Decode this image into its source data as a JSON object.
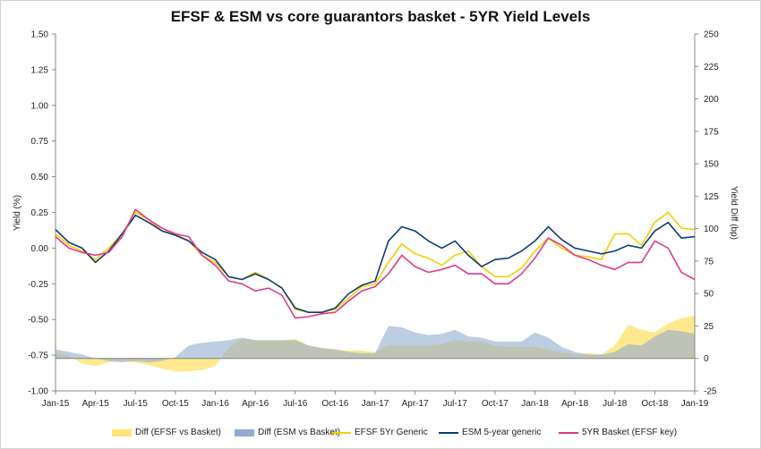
{
  "chart_data": {
    "type": "line",
    "title": "EFSF & ESM vs core guarantors basket - 5YR Yield Levels",
    "ylabel": "Yield (%)",
    "y2label": "Yield Diff (bp)",
    "ylim": [
      -1.0,
      1.5
    ],
    "y2lim": [
      -25,
      250
    ],
    "yticks": [
      "1.50",
      "1.25",
      "1.00",
      "0.75",
      "0.50",
      "0.25",
      "0.00",
      "-0.25",
      "-0.50",
      "-0.75",
      "-1.00"
    ],
    "y2ticks": [
      "250",
      "225",
      "200",
      "175",
      "150",
      "125",
      "100",
      "75",
      "50",
      "25",
      "0",
      "-25"
    ],
    "xticks": [
      "Jan-15",
      "Apr-15",
      "Jul-15",
      "Oct-15",
      "Jan-16",
      "Apr-16",
      "Jul-16",
      "Oct-16",
      "Jan-17",
      "Apr-17",
      "Jul-17",
      "Oct-17",
      "Jan-18",
      "Apr-18",
      "Jul-18",
      "Oct-18",
      "Jan-19"
    ],
    "grid": false,
    "legend_position": "bottom",
    "x": [
      "Jan-15",
      "Feb-15",
      "Mar-15",
      "Apr-15",
      "May-15",
      "Jun-15",
      "Jul-15",
      "Aug-15",
      "Sep-15",
      "Oct-15",
      "Nov-15",
      "Dec-15",
      "Jan-16",
      "Feb-16",
      "Mar-16",
      "Apr-16",
      "May-16",
      "Jun-16",
      "Jul-16",
      "Aug-16",
      "Sep-16",
      "Oct-16",
      "Nov-16",
      "Dec-16",
      "Jan-17",
      "Feb-17",
      "Mar-17",
      "Apr-17",
      "May-17",
      "Jun-17",
      "Jul-17",
      "Aug-17",
      "Sep-17",
      "Oct-17",
      "Nov-17",
      "Dec-17",
      "Jan-18",
      "Feb-18",
      "Mar-18",
      "Apr-18",
      "May-18",
      "Jun-18",
      "Jul-18",
      "Aug-18",
      "Sep-18",
      "Oct-18",
      "Nov-18",
      "Dec-18",
      "Jan-19"
    ],
    "series": [
      {
        "name": "Diff (EFSF vs Basket)",
        "axis": "right",
        "kind": "area",
        "color": "#ffe47a",
        "values": [
          4,
          2,
          -4,
          -6,
          -3,
          -2,
          -3,
          -5,
          -8,
          -10,
          -10,
          -9,
          -6,
          8,
          15,
          14,
          14,
          14,
          15,
          10,
          8,
          7,
          6,
          6,
          5,
          10,
          10,
          10,
          10,
          11,
          14,
          13,
          13,
          10,
          9,
          9,
          9,
          7,
          5,
          3,
          4,
          3,
          10,
          26,
          22,
          20,
          27,
          31,
          33
        ]
      },
      {
        "name": "Diff (ESM vs Basket)",
        "axis": "right",
        "kind": "area",
        "color": "#91abcf",
        "values": [
          7,
          5,
          3,
          0,
          -2,
          -3,
          -2,
          -3,
          -2,
          1,
          10,
          12,
          13,
          14,
          16,
          14,
          14,
          14,
          14,
          10,
          8,
          7,
          5,
          4,
          4,
          25,
          24,
          20,
          18,
          19,
          22,
          17,
          16,
          13,
          13,
          13,
          20,
          16,
          9,
          5,
          3,
          3,
          5,
          11,
          10,
          17,
          22,
          21,
          19
        ]
      },
      {
        "name": "EFSF 5Yr Generic",
        "axis": "left",
        "kind": "line",
        "color": "#f0d000",
        "values": [
          0.1,
          0.02,
          -0.02,
          -0.08,
          0.0,
          0.1,
          0.25,
          0.2,
          0.12,
          0.1,
          0.05,
          -0.05,
          -0.1,
          -0.2,
          -0.22,
          -0.17,
          -0.22,
          -0.28,
          -0.43,
          -0.45,
          -0.45,
          -0.43,
          -0.35,
          -0.27,
          -0.25,
          -0.1,
          0.03,
          -0.04,
          -0.07,
          -0.12,
          -0.05,
          -0.02,
          -0.13,
          -0.2,
          -0.2,
          -0.14,
          -0.02,
          0.07,
          0.0,
          -0.05,
          -0.06,
          -0.08,
          0.1,
          0.1,
          0.02,
          0.18,
          0.25,
          0.14,
          0.13
        ]
      },
      {
        "name": "ESM 5-year generic",
        "axis": "left",
        "kind": "line",
        "color": "#0c3c78",
        "values": [
          0.13,
          0.04,
          0.0,
          -0.1,
          -0.02,
          0.1,
          0.23,
          0.18,
          0.12,
          0.09,
          0.05,
          -0.03,
          -0.08,
          -0.2,
          -0.22,
          -0.18,
          -0.22,
          -0.28,
          -0.42,
          -0.45,
          -0.45,
          -0.42,
          -0.32,
          -0.26,
          -0.23,
          0.05,
          0.15,
          0.12,
          0.05,
          0.0,
          0.05,
          -0.05,
          -0.13,
          -0.08,
          -0.07,
          -0.02,
          0.05,
          0.15,
          0.06,
          0.0,
          -0.02,
          -0.04,
          -0.02,
          0.02,
          0.0,
          0.12,
          0.18,
          0.07,
          0.08
        ]
      },
      {
        "name": "5YR Basket (EFSF key)",
        "axis": "left",
        "kind": "line",
        "color": "#e03a8b",
        "values": [
          0.08,
          0.0,
          -0.03,
          -0.05,
          -0.03,
          0.08,
          0.27,
          0.2,
          0.14,
          0.1,
          0.08,
          -0.05,
          -0.12,
          -0.23,
          -0.25,
          -0.3,
          -0.28,
          -0.33,
          -0.49,
          -0.48,
          -0.46,
          -0.45,
          -0.37,
          -0.3,
          -0.27,
          -0.18,
          -0.05,
          -0.13,
          -0.17,
          -0.15,
          -0.12,
          -0.18,
          -0.18,
          -0.25,
          -0.25,
          -0.18,
          -0.07,
          0.07,
          0.02,
          -0.05,
          -0.08,
          -0.12,
          -0.15,
          -0.1,
          -0.1,
          0.05,
          0.0,
          -0.17,
          -0.22
        ]
      }
    ]
  }
}
